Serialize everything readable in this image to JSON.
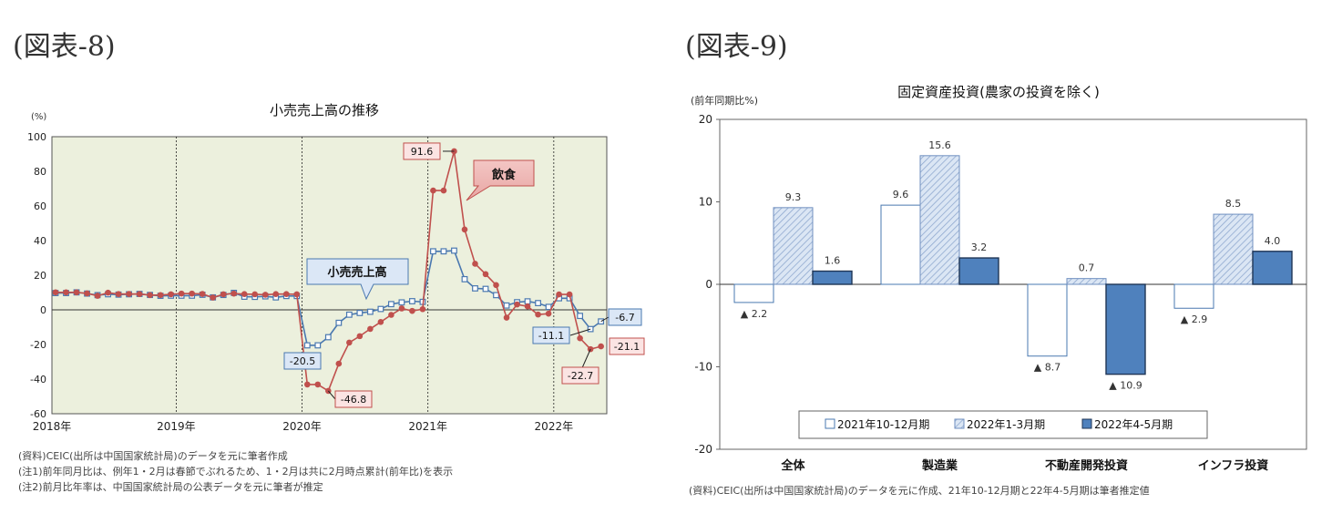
{
  "figure8": {
    "label": "(図表-8)",
    "notes": [
      "(資料)CEIC(出所は中国国家統計局)のデータを元に筆者作成",
      "(注1)前年同月比は、例年1・2月は春節でぶれるため、1・2月は共に2月時点累計(前年比)を表示",
      "(注2)前月比年率は、中国国家統計局の公表データを元に筆者が推定"
    ]
  },
  "figure9": {
    "label": "(図表-9)",
    "notes": [
      "(資料)CEIC(出所は中国国家統計局)のデータを元に作成、21年10-12月期と22年4-5月期は筆者推定値"
    ]
  },
  "chart_data": [
    {
      "type": "line",
      "title": "小売売上高の推移",
      "ylabel": "(%)",
      "ylim": [
        -60,
        100
      ],
      "yticks": [
        100,
        80,
        60,
        40,
        20,
        0,
        -20,
        -40,
        -60
      ],
      "x_start": "2018-01",
      "x_end": "2022-05",
      "xticks": [
        "2018年",
        "2019年",
        "2020年",
        "2021年",
        "2022年"
      ],
      "grid": "vertical dotted lines at each year start",
      "series": [
        {
          "name": "小売売上高",
          "color": "#4a78b0",
          "marker": "square",
          "values": [
            9.7,
            9.7,
            10.1,
            9.4,
            8.5,
            9.0,
            8.8,
            9.0,
            9.2,
            8.6,
            8.1,
            8.2,
            8.2,
            8.2,
            8.7,
            7.2,
            8.6,
            9.8,
            7.6,
            7.5,
            7.8,
            7.2,
            8.0,
            8.0,
            -20.5,
            -20.5,
            -15.8,
            -7.5,
            -2.8,
            -1.8,
            -1.1,
            0.5,
            3.3,
            4.3,
            5.0,
            4.6,
            33.8,
            33.8,
            34.2,
            17.7,
            12.4,
            12.1,
            8.5,
            2.5,
            4.4,
            4.9,
            3.9,
            1.7,
            6.7,
            6.7,
            -3.5,
            -11.1,
            -6.7
          ],
          "callouts": [
            {
              "label": "小売売上高"
            },
            {
              "label": "-20.5"
            },
            {
              "label": "-11.1"
            },
            {
              "label": "-6.7"
            }
          ]
        },
        {
          "name": "飲食",
          "color": "#c0504d",
          "marker": "circle",
          "values": [
            10.1,
            10.1,
            10.1,
            9.5,
            8.1,
            9.9,
            9.1,
            9.2,
            9.1,
            8.5,
            8.5,
            9.0,
            9.4,
            9.4,
            9.2,
            7.1,
            9.0,
            9.4,
            9.1,
            9.0,
            8.7,
            9.1,
            9.1,
            9.0,
            -43.1,
            -43.1,
            -46.8,
            -31.1,
            -18.9,
            -15.2,
            -11.0,
            -7.0,
            -2.9,
            0.8,
            -0.6,
            0.4,
            68.9,
            68.9,
            91.6,
            46.4,
            26.6,
            20.6,
            14.3,
            -4.5,
            3.1,
            2.0,
            -2.7,
            -2.2,
            8.9,
            8.9,
            -16.4,
            -22.7,
            -21.1
          ],
          "callouts": [
            {
              "label": "91.6"
            },
            {
              "label": "飲食"
            },
            {
              "label": "-46.8"
            },
            {
              "label": "-22.7"
            },
            {
              "label": "-21.1"
            }
          ]
        }
      ]
    },
    {
      "type": "bar",
      "title": "固定資産投資(農家の投資を除く)",
      "ylabel": "(前年同期比%)",
      "ylim": [
        -20,
        20
      ],
      "yticks": [
        20,
        10,
        0,
        -10,
        -20
      ],
      "categories": [
        "全体",
        "製造業",
        "不動産開発投資",
        "インフラ投資"
      ],
      "legend_position": "bottom-center",
      "series": [
        {
          "name": "2021年10-12月期",
          "style": "white",
          "values": [
            -2.2,
            9.6,
            -8.7,
            -2.9
          ],
          "labels": [
            "▲ 2.2",
            "9.6",
            "▲ 8.7",
            "▲ 2.9"
          ]
        },
        {
          "name": "2022年1-3月期",
          "style": "hatched light blue",
          "values": [
            9.3,
            15.6,
            0.7,
            8.5
          ],
          "labels": [
            "9.3",
            "15.6",
            "0.7",
            "8.5"
          ]
        },
        {
          "name": "2022年4-5月期",
          "style": "solid blue",
          "values": [
            1.6,
            3.2,
            -10.9,
            4.0
          ],
          "labels": [
            "1.6",
            "3.2",
            "▲ 10.9",
            "4.0"
          ]
        }
      ]
    }
  ]
}
